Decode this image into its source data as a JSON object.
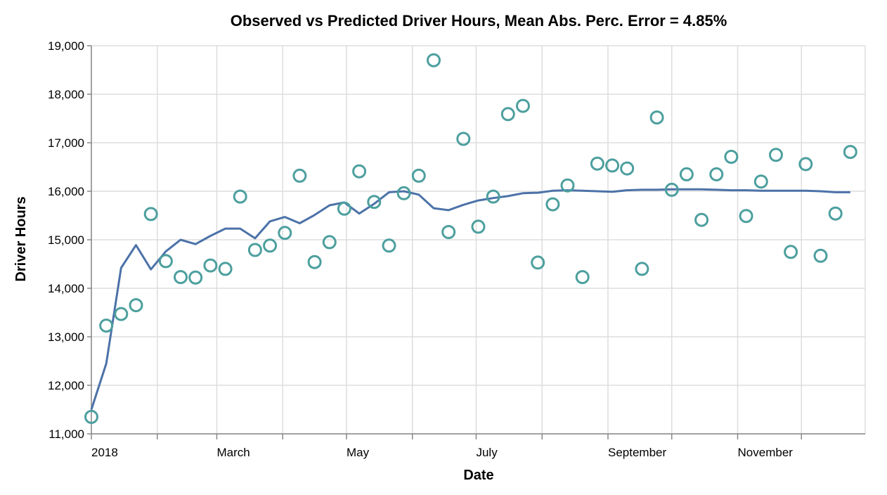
{
  "chart_data": {
    "type": "line+scatter",
    "title": "Observed vs Predicted Driver Hours, Mean Abs. Perc. Error = 4.85%",
    "xlabel": "Date",
    "ylabel": "Driver Hours",
    "xlim": [
      "2018-01-01",
      "2018-12-31"
    ],
    "ylim": [
      11000,
      19000
    ],
    "grid": true,
    "x_ticks": [
      {
        "date": "2018-01-01",
        "label": "2018"
      },
      {
        "date": "2018-02-01",
        "label": ""
      },
      {
        "date": "2018-03-01",
        "label": "March"
      },
      {
        "date": "2018-04-01",
        "label": ""
      },
      {
        "date": "2018-05-01",
        "label": "May"
      },
      {
        "date": "2018-06-01",
        "label": ""
      },
      {
        "date": "2018-07-01",
        "label": "July"
      },
      {
        "date": "2018-08-01",
        "label": ""
      },
      {
        "date": "2018-09-01",
        "label": "September"
      },
      {
        "date": "2018-10-01",
        "label": ""
      },
      {
        "date": "2018-11-01",
        "label": "November"
      },
      {
        "date": "2018-12-01",
        "label": ""
      }
    ],
    "y_ticks": [
      {
        "value": 11000,
        "label": "11,000"
      },
      {
        "value": 12000,
        "label": "12,000"
      },
      {
        "value": 13000,
        "label": "13,000"
      },
      {
        "value": 14000,
        "label": "14,000"
      },
      {
        "value": 15000,
        "label": "15,000"
      },
      {
        "value": 16000,
        "label": "16,000"
      },
      {
        "value": 17000,
        "label": "17,000"
      },
      {
        "value": 18000,
        "label": "18,000"
      },
      {
        "value": 19000,
        "label": "19,000"
      }
    ],
    "colors": {
      "observed": "#4c9f9e",
      "predicted": "#4c72a8"
    },
    "series": [
      {
        "role": "observed",
        "mark": "point",
        "x": [
          "2018-01-01",
          "2018-01-08",
          "2018-01-15",
          "2018-01-22",
          "2018-01-29",
          "2018-02-05",
          "2018-02-12",
          "2018-02-19",
          "2018-02-26",
          "2018-03-05",
          "2018-03-12",
          "2018-03-19",
          "2018-03-26",
          "2018-04-02",
          "2018-04-09",
          "2018-04-16",
          "2018-04-23",
          "2018-04-30",
          "2018-05-07",
          "2018-05-14",
          "2018-05-21",
          "2018-05-28",
          "2018-06-04",
          "2018-06-11",
          "2018-06-18",
          "2018-06-25",
          "2018-07-02",
          "2018-07-09",
          "2018-07-16",
          "2018-07-23",
          "2018-07-30",
          "2018-08-06",
          "2018-08-13",
          "2018-08-20",
          "2018-08-27",
          "2018-09-03",
          "2018-09-10",
          "2018-09-17",
          "2018-09-24",
          "2018-10-01",
          "2018-10-08",
          "2018-10-15",
          "2018-10-22",
          "2018-10-29",
          "2018-11-05",
          "2018-11-12",
          "2018-11-19",
          "2018-11-26",
          "2018-12-03",
          "2018-12-10",
          "2018-12-17",
          "2018-12-24"
        ],
        "y": [
          11350,
          13230,
          13470,
          13650,
          15530,
          14560,
          14230,
          14220,
          14470,
          14400,
          15890,
          14790,
          14880,
          15140,
          16320,
          14540,
          14950,
          15640,
          16410,
          15780,
          14880,
          15960,
          16320,
          18700,
          15160,
          17080,
          15270,
          15890,
          17590,
          17760,
          14530,
          15730,
          16120,
          14230,
          16570,
          16530,
          16470,
          14400,
          17520,
          16030,
          16350,
          15410,
          16350,
          16710,
          15490,
          16200,
          16750,
          14750,
          16560,
          14670,
          15540,
          16810
        ]
      },
      {
        "role": "predicted",
        "mark": "line",
        "x": [
          "2018-01-01",
          "2018-01-08",
          "2018-01-15",
          "2018-01-22",
          "2018-01-29",
          "2018-02-05",
          "2018-02-12",
          "2018-02-19",
          "2018-02-26",
          "2018-03-05",
          "2018-03-12",
          "2018-03-19",
          "2018-03-26",
          "2018-04-02",
          "2018-04-09",
          "2018-04-16",
          "2018-04-23",
          "2018-04-30",
          "2018-05-07",
          "2018-05-14",
          "2018-05-21",
          "2018-05-28",
          "2018-06-04",
          "2018-06-11",
          "2018-06-18",
          "2018-06-25",
          "2018-07-02",
          "2018-07-09",
          "2018-07-16",
          "2018-07-23",
          "2018-07-30",
          "2018-08-06",
          "2018-08-13",
          "2018-08-20",
          "2018-08-27",
          "2018-09-03",
          "2018-09-10",
          "2018-09-17",
          "2018-09-24",
          "2018-10-01",
          "2018-10-08",
          "2018-10-15",
          "2018-10-22",
          "2018-10-29",
          "2018-11-05",
          "2018-11-12",
          "2018-11-19",
          "2018-11-26",
          "2018-12-03",
          "2018-12-10",
          "2018-12-17",
          "2018-12-24"
        ],
        "y": [
          11500,
          12450,
          14420,
          14890,
          14390,
          14760,
          15000,
          14910,
          15080,
          15230,
          15230,
          15030,
          15380,
          15470,
          15340,
          15510,
          15710,
          15770,
          15540,
          15740,
          15980,
          16000,
          15930,
          15650,
          15610,
          15720,
          15810,
          15860,
          15900,
          15960,
          15970,
          16010,
          16020,
          16010,
          16000,
          15990,
          16020,
          16030,
          16030,
          16040,
          16040,
          16040,
          16030,
          16020,
          16020,
          16010,
          16010,
          16010,
          16010,
          16000,
          15980,
          15980
        ]
      }
    ]
  }
}
